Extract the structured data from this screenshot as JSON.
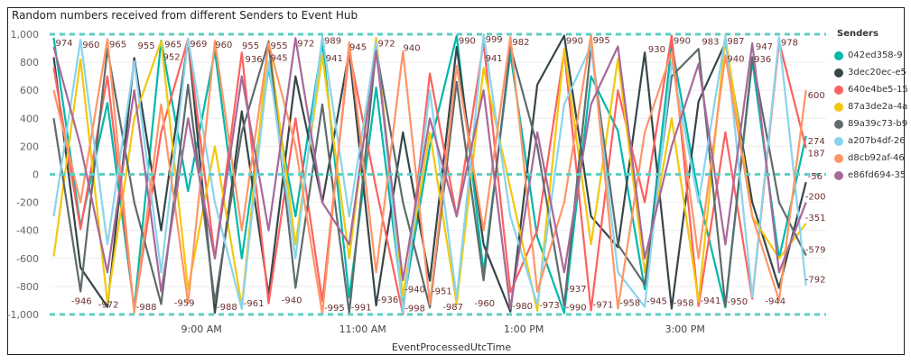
{
  "chart_data": {
    "type": "line",
    "title": "Random numbers received from different Senders to Event Hub",
    "xlabel": "EventProcessedUtcTime",
    "ylabel": "",
    "ylim": [
      -1000,
      1000
    ],
    "yticks": [
      "1,000",
      "800",
      "600",
      "400",
      "200",
      "0",
      "-200",
      "-400",
      "-600",
      "-800",
      "-1,000"
    ],
    "yticks_values": [
      1000,
      800,
      600,
      400,
      200,
      0,
      -200,
      -400,
      -600,
      -800,
      -1000
    ],
    "xticks": [
      {
        "label": "9:00 AM",
        "time": "09:00"
      },
      {
        "label": "11:00 AM",
        "time": "11:00"
      },
      {
        "label": "1:00 PM",
        "time": "13:00"
      },
      {
        "label": "3:00 PM",
        "time": "15:00"
      }
    ],
    "xlim": [
      "07:07",
      "16:45"
    ],
    "grid": true,
    "reference_lines": [
      1000,
      0,
      -1000
    ],
    "reference_color": "#5ECFC4",
    "legend": {
      "title": "Senders",
      "position": "right"
    },
    "x": [
      "07:10",
      "07:30",
      "07:50",
      "08:10",
      "08:30",
      "08:50",
      "09:10",
      "09:30",
      "09:50",
      "10:10",
      "10:30",
      "10:50",
      "11:10",
      "11:30",
      "11:50",
      "12:10",
      "12:30",
      "12:50",
      "13:10",
      "13:30",
      "13:50",
      "14:10",
      "14:30",
      "14:50",
      "15:10",
      "15:30",
      "15:50",
      "16:10",
      "16:30"
    ],
    "series": [
      {
        "name": "042ed358-9",
        "color": "#01B8AA",
        "values": [
          974,
          -372,
          510,
          -959,
          955,
          -120,
          880,
          -600,
          760,
          -300,
          945,
          -880,
          620,
          -940,
          200,
          990,
          -700,
          860,
          -450,
          -990,
          700,
          310,
          -820,
          930,
          -150,
          -950,
          810,
          -600,
          274
        ]
      },
      {
        "name": "3dec20ec-e5",
        "color": "#374649",
        "values": [
          836,
          -666,
          -946,
          830,
          -400,
          960,
          -988,
          450,
          -861,
          700,
          -200,
          880,
          -936,
          300,
          -760,
          910,
          -500,
          -980,
          640,
          990,
          -300,
          -520,
          870,
          -958,
          520,
          940,
          -200,
          -810,
          -56
        ]
      },
      {
        "name": "640e4be5-15",
        "color": "#FD625E",
        "values": [
          763,
          -391,
          700,
          -972,
          300,
          965,
          -600,
          869,
          -920,
          400,
          -905,
          879,
          -100,
          -998,
          720,
          -300,
          941,
          -840,
          -400,
          880,
          -971,
          600,
          -200,
          990,
          -941,
          300,
          -888,
          947,
          187
        ]
      },
      {
        "name": "87a3de2a-4a",
        "color": "#F2C80F",
        "values": [
          -586,
          820,
          -917,
          400,
          952,
          -822,
          200,
          -940,
          955,
          -500,
          848,
          -600,
          972,
          -870,
          300,
          -927,
          760,
          -100,
          -973,
          895,
          -500,
          826,
          -700,
          400,
          -908,
          983,
          -300,
          -600,
          -351
        ]
      },
      {
        "name": "89a39c73-b9",
        "color": "#5F6B6D",
        "values": [
          400,
          -836,
          894,
          -200,
          -926,
          640,
          -915,
          300,
          945,
          -810,
          500,
          -991,
          891,
          -200,
          -951,
          660,
          -757,
          910,
          200,
          -937,
          911,
          -500,
          -787,
          700,
          895,
          -944,
          836,
          -200,
          -579
        ]
      },
      {
        "name": "a207b4df-26",
        "color": "#8AD4EB",
        "values": [
          -300,
          960,
          -500,
          807,
          -700,
          969,
          -200,
          -961,
          805,
          -600,
          989,
          -300,
          940,
          -987,
          600,
          -886,
          999,
          -300,
          -929,
          500,
          916,
          -700,
          -945,
          800,
          -200,
          987,
          -876,
          978,
          -792
        ]
      },
      {
        "name": "d8cb92af-46",
        "color": "#FE9666",
        "values": [
          600,
          -200,
          965,
          -988,
          500,
          -920,
          955,
          -400,
          936,
          200,
          -995,
          941,
          -700,
          878,
          -928,
          775,
          -400,
          982,
          -837,
          -200,
          995,
          -958,
          300,
          870,
          -600,
          849,
          -300,
          -900,
          600
        ]
      },
      {
        "name": "e86fd694-35",
        "color": "#A66999",
        "values": [
          910,
          200,
          -700,
          600,
          -836,
          400,
          -600,
          700,
          -400,
          972,
          -200,
          -500,
          881,
          -755,
          400,
          -300,
          600,
          -960,
          300,
          -700,
          500,
          913,
          -600,
          200,
          789,
          -500,
          936,
          -700,
          -200
        ]
      }
    ]
  }
}
